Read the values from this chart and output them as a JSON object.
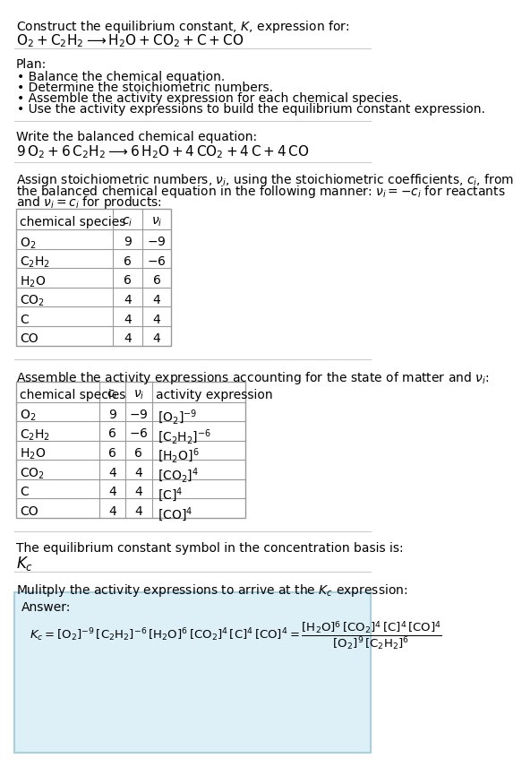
{
  "title_line1": "Construct the equilibrium constant, $K$, expression for:",
  "reaction_unbalanced": "$\\mathrm{O_2 + C_2H_2 \\longrightarrow H_2O + CO_2 + C + CO}$",
  "plan_header": "Plan:",
  "plan_items": [
    "• Balance the chemical equation.",
    "• Determine the stoichiometric numbers.",
    "• Assemble the activity expression for each chemical species.",
    "• Use the activity expressions to build the equilibrium constant expression."
  ],
  "balanced_header": "Write the balanced chemical equation:",
  "reaction_balanced": "$\\mathrm{9\\,O_2 + 6\\,C_2H_2 \\longrightarrow 6\\,H_2O + 4\\,CO_2 + 4\\,C + 4\\,CO}$",
  "stoich_header_lines": [
    "Assign stoichiometric numbers, $\\nu_i$, using the stoichiometric coefficients, $c_i$, from",
    "the balanced chemical equation in the following manner: $\\nu_i = -c_i$ for reactants",
    "and $\\nu_i = c_i$ for products:"
  ],
  "table1_headers": [
    "chemical species",
    "$c_i$",
    "$\\nu_i$"
  ],
  "table1_data": [
    [
      "$\\mathrm{O_2}$",
      "9",
      "$-9$"
    ],
    [
      "$\\mathrm{C_2H_2}$",
      "6",
      "$-6$"
    ],
    [
      "$\\mathrm{H_2O}$",
      "6",
      "6"
    ],
    [
      "$\\mathrm{CO_2}$",
      "4",
      "4"
    ],
    [
      "C",
      "4",
      "4"
    ],
    [
      "CO",
      "4",
      "4"
    ]
  ],
  "activity_header": "Assemble the activity expressions accounting for the state of matter and $\\nu_i$:",
  "table2_headers": [
    "chemical species",
    "$c_i$",
    "$\\nu_i$",
    "activity expression"
  ],
  "table2_data": [
    [
      "$\\mathrm{O_2}$",
      "9",
      "$-9$",
      "$[\\mathrm{O_2}]^{-9}$"
    ],
    [
      "$\\mathrm{C_2H_2}$",
      "6",
      "$-6$",
      "$[\\mathrm{C_2H_2}]^{-6}$"
    ],
    [
      "$\\mathrm{H_2O}$",
      "6",
      "6",
      "$[\\mathrm{H_2O}]^{6}$"
    ],
    [
      "$\\mathrm{CO_2}$",
      "4",
      "4",
      "$[\\mathrm{CO_2}]^{4}$"
    ],
    [
      "C",
      "4",
      "4",
      "$[\\mathrm{C}]^{4}$"
    ],
    [
      "CO",
      "4",
      "4",
      "$[\\mathrm{CO}]^{4}$"
    ]
  ],
  "kc_header": "The equilibrium constant symbol in the concentration basis is:",
  "kc_symbol": "$K_c$",
  "multiply_header": "Mulitply the activity expressions to arrive at the $K_c$ expression:",
  "answer_label": "Answer:",
  "kc_full_eq": "$K_c = [\\mathrm{O_2}]^{-9}\\,[\\mathrm{C_2H_2}]^{-6}\\,[\\mathrm{H_2O}]^{6}\\,[\\mathrm{CO_2}]^{4}\\,[\\mathrm{C}]^{4}\\,[\\mathrm{CO}]^{4} = \\dfrac{[\\mathrm{H_2O}]^6\\,[\\mathrm{CO_2}]^4\\,[\\mathrm{C}]^4\\,[\\mathrm{CO}]^4}{[\\mathrm{O_2}]^9\\,[\\mathrm{C_2H_2}]^6}$",
  "bg_color": "#ffffff",
  "answer_bg": "#ddf0f8",
  "answer_border": "#a8cfe0",
  "table_border": "#999999",
  "text_color": "#000000",
  "separator_color": "#cccccc"
}
